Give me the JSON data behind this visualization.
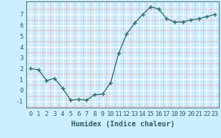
{
  "x": [
    0,
    1,
    2,
    3,
    4,
    5,
    6,
    7,
    8,
    9,
    10,
    11,
    12,
    13,
    14,
    15,
    16,
    17,
    18,
    19,
    20,
    21,
    22,
    23
  ],
  "y": [
    2.0,
    1.9,
    0.9,
    1.1,
    0.2,
    -0.9,
    -0.85,
    -0.9,
    -0.4,
    -0.35,
    0.7,
    3.4,
    5.2,
    6.2,
    7.0,
    7.7,
    7.5,
    6.6,
    6.3,
    6.3,
    6.5,
    6.6,
    6.8,
    7.0
  ],
  "line_color": "#2d6e6e",
  "marker": "+",
  "marker_size": 4,
  "bg_color": "#cceeff",
  "grid_color_major": "#ffffff",
  "grid_color_minor": "#e8b8b8",
  "xlabel": "Humidex (Indice chaleur)",
  "xlim_min": -0.5,
  "xlim_max": 23.5,
  "ylim_min": -1.6,
  "ylim_max": 8.2,
  "yticks": [
    -1,
    0,
    1,
    2,
    3,
    4,
    5,
    6,
    7
  ],
  "xticks": [
    0,
    1,
    2,
    3,
    4,
    5,
    6,
    7,
    8,
    9,
    10,
    11,
    12,
    13,
    14,
    15,
    16,
    17,
    18,
    19,
    20,
    21,
    22,
    23
  ],
  "xlabel_fontsize": 7.5,
  "tick_fontsize": 6.5,
  "linewidth": 1.0,
  "spine_color": "#557777"
}
